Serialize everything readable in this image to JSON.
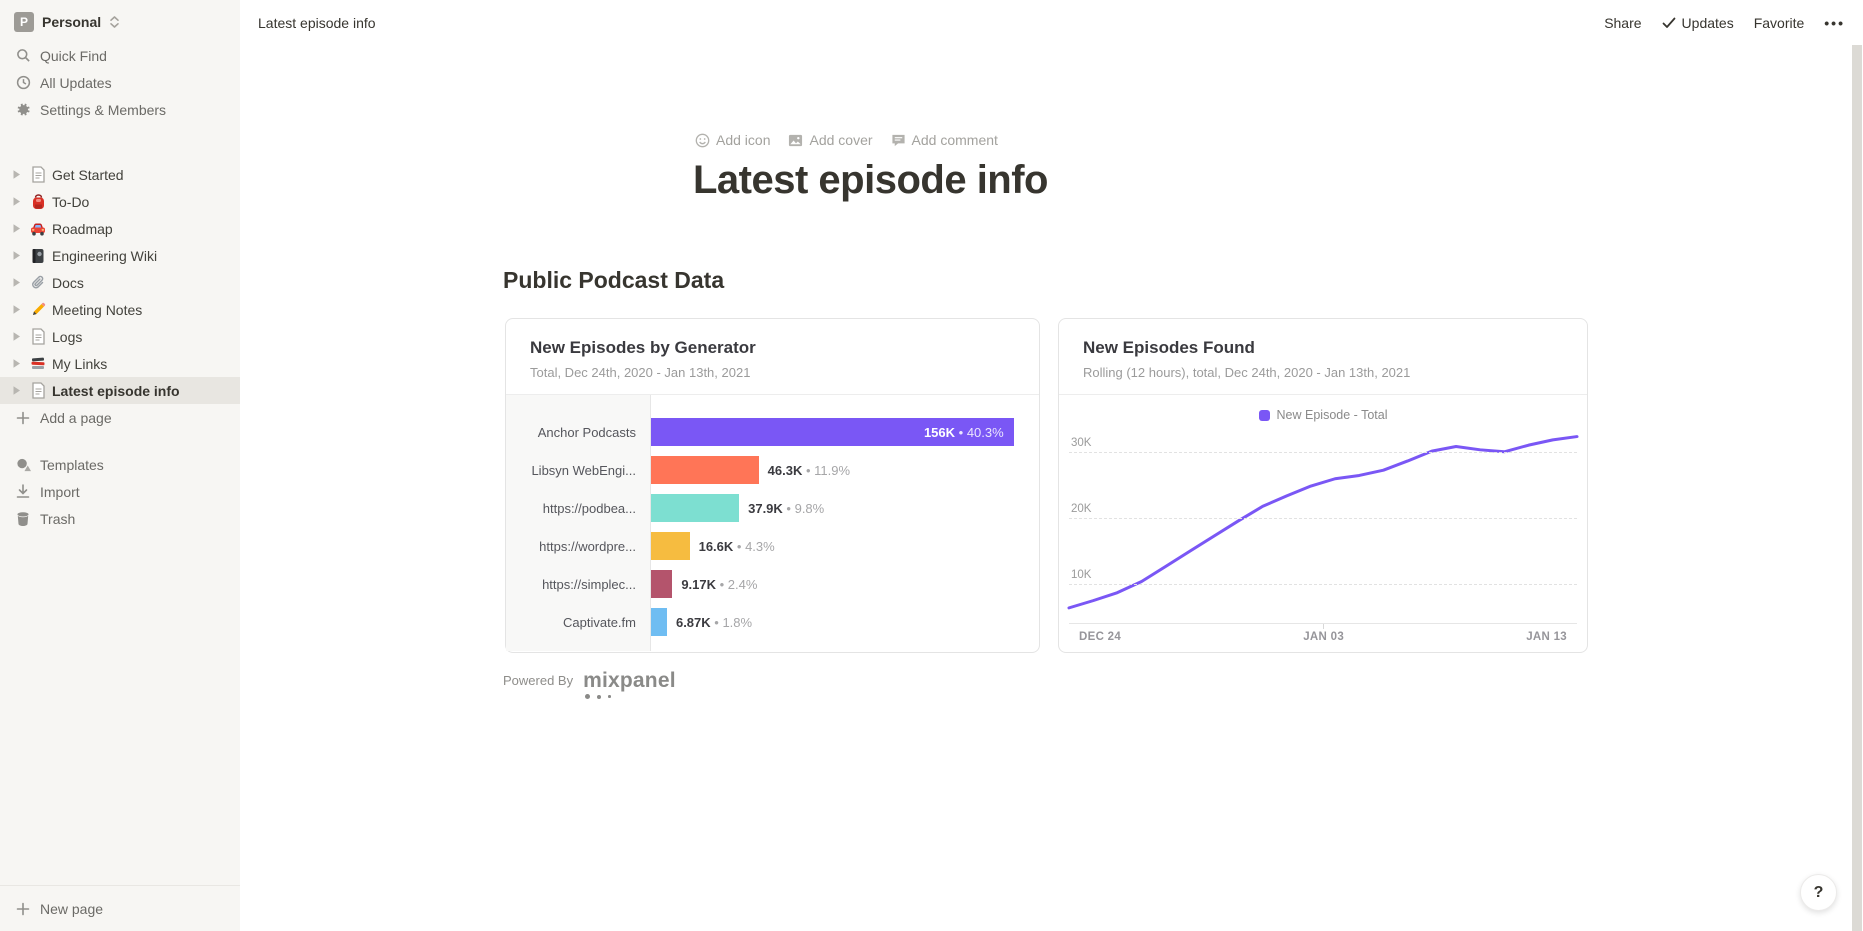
{
  "sidebar": {
    "workspace": {
      "name": "Personal",
      "initial": "P"
    },
    "top_items": [
      {
        "label": "Quick Find"
      },
      {
        "label": "All Updates"
      },
      {
        "label": "Settings & Members"
      }
    ],
    "pages": [
      {
        "label": "Get Started",
        "icon": "document"
      },
      {
        "label": "To-Do",
        "icon": "backpack"
      },
      {
        "label": "Roadmap",
        "icon": "car"
      },
      {
        "label": "Engineering Wiki",
        "icon": "notebook"
      },
      {
        "label": "Docs",
        "icon": "paperclip"
      },
      {
        "label": "Meeting Notes",
        "icon": "pencil"
      },
      {
        "label": "Logs",
        "icon": "document"
      },
      {
        "label": "My Links",
        "icon": "books"
      },
      {
        "label": "Latest episode info",
        "icon": "document"
      }
    ],
    "add_page_label": "Add a page",
    "bottom_items": [
      {
        "label": "Templates"
      },
      {
        "label": "Import"
      },
      {
        "label": "Trash"
      }
    ],
    "new_page_label": "New page"
  },
  "topbar": {
    "breadcrumb": "Latest episode info",
    "share_label": "Share",
    "updates_label": "Updates",
    "favorite_label": "Favorite",
    "more_label": "•••"
  },
  "page": {
    "add_icon_label": "Add icon",
    "add_cover_label": "Add cover",
    "add_comment_label": "Add comment",
    "title": "Latest episode info",
    "section_heading": "Public Podcast Data",
    "powered_by": "Powered By",
    "mixpanel_wordmark": "mixpanel"
  },
  "chart_data": [
    {
      "type": "bar",
      "orientation": "horizontal",
      "title": "New Episodes by Generator",
      "subtitle": "Total, Dec 24th, 2020 - Jan 13th, 2021",
      "categories": [
        "Anchor Podcasts",
        "Libsyn WebEngi...",
        "https://podbea...",
        "https://wordpre...",
        "https://simplec...",
        "Captivate.fm"
      ],
      "values": [
        156000,
        46300,
        37900,
        16600,
        9170,
        6870
      ],
      "value_labels": [
        "156K",
        "46.3K",
        "37.9K",
        "16.6K",
        "9.17K",
        "6.87K"
      ],
      "pct_labels": [
        "40.3%",
        "11.9%",
        "9.8%",
        "4.3%",
        "2.4%",
        "1.8%"
      ],
      "colors": [
        "#7A57F5",
        "#FF7557",
        "#7DDFD1",
        "#F6BC40",
        "#B4546C",
        "#6FBDF2"
      ],
      "separator": "•",
      "xlim": [
        0,
        160000
      ]
    },
    {
      "type": "line",
      "title": "New Episodes Found",
      "subtitle": "Rolling (12 hours), total, Dec 24th, 2020 - Jan 13th, 2021",
      "legend": [
        {
          "label": "New Episode - Total",
          "color": "#7A57F5"
        }
      ],
      "line_color": "#7A57F5",
      "x_tick_labels": [
        "DEC 24",
        "JAN 03",
        "JAN 13"
      ],
      "y_ticks": [
        10000,
        20000,
        30000
      ],
      "y_tick_labels": [
        "10K",
        "20K",
        "30K"
      ],
      "ylim": [
        4000,
        33000
      ],
      "grid": "dashed-horizontal",
      "legend_position": "top-center",
      "values": [
        6300,
        7400,
        8600,
        10300,
        12600,
        14900,
        17200,
        19500,
        21700,
        23300,
        24800,
        25900,
        26400,
        27200,
        28600,
        30100,
        30800,
        30300,
        30000,
        31000,
        31800,
        32300
      ]
    }
  ],
  "help_label": "?"
}
